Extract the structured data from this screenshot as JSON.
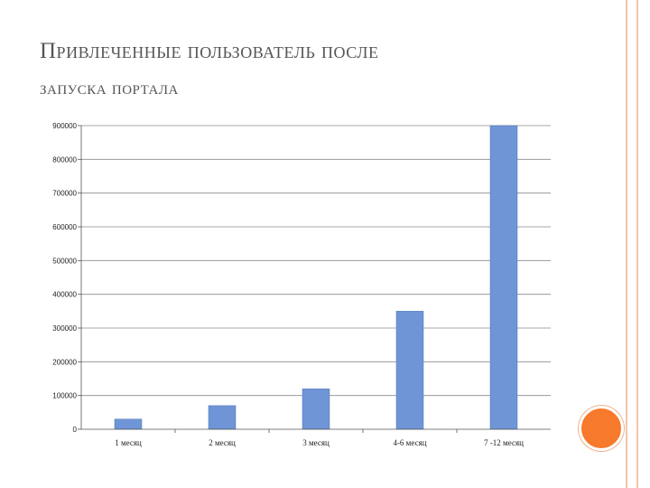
{
  "title": {
    "line1": "Привлеченные пользователь после",
    "line2": "запуска портала"
  },
  "colors": {
    "bar": "#6f95d6",
    "accent_circle": "#f7792b",
    "border": "#f3c6a8"
  },
  "chart_data": {
    "type": "bar",
    "categories": [
      "1 месяц",
      "2 месяц",
      "3 месяц",
      "4-6 месяц",
      "7 -12 месяц"
    ],
    "values": [
      30000,
      70000,
      120000,
      350000,
      900000
    ],
    "ylim": [
      0,
      900000
    ],
    "yticks": [
      0,
      100000,
      200000,
      300000,
      400000,
      500000,
      600000,
      700000,
      800000,
      900000
    ],
    "grid": true
  }
}
